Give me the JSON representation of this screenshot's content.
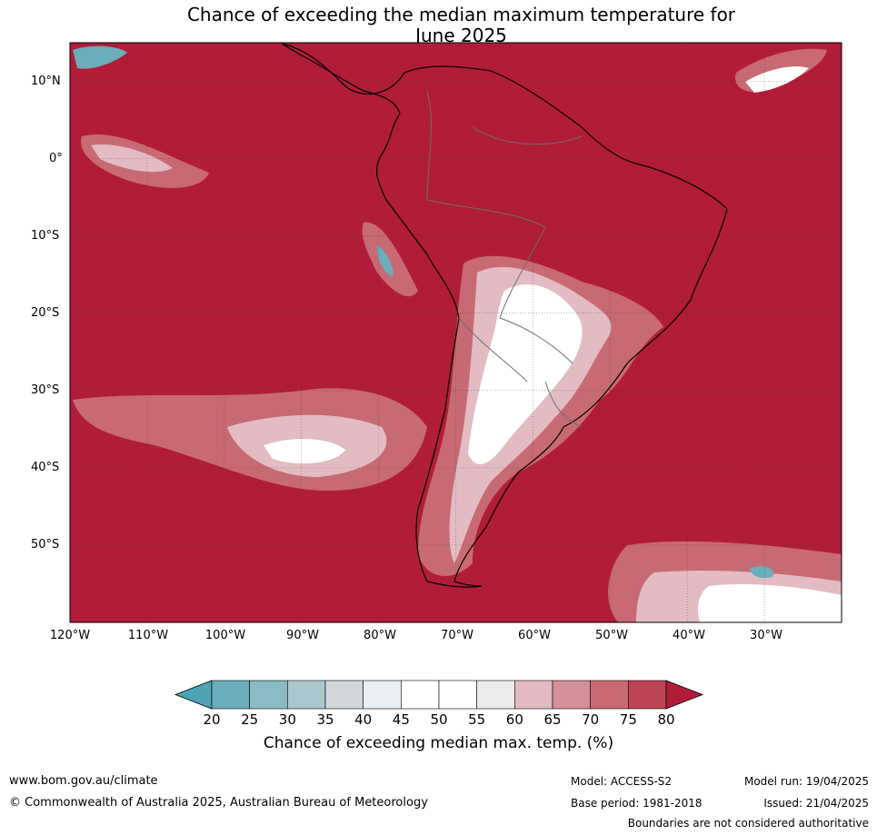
{
  "title_line1": "Chance of exceeding the median maximum temperature for",
  "title_line2": "June 2025",
  "lat_labels": [
    "10°N",
    "0°",
    "10°S",
    "20°S",
    "30°S",
    "40°S",
    "50°S"
  ],
  "lon_labels": [
    "120°W",
    "110°W",
    "100°W",
    "90°W",
    "80°W",
    "70°W",
    "60°W",
    "50°W",
    "40°W",
    "30°W"
  ],
  "map_extent": {
    "lon_min": -120,
    "lon_max": -20,
    "lat_min": -60,
    "lat_max": 15
  },
  "colorbar": {
    "label": "Chance of exceeding median max. temp. (%)",
    "ticks": [
      "20",
      "25",
      "30",
      "35",
      "40",
      "45",
      "50",
      "55",
      "60",
      "65",
      "70",
      "75",
      "80"
    ],
    "colors": [
      "#4ea4b4",
      "#6aadbb",
      "#8bbac5",
      "#abc8cf",
      "#d2d6d9",
      "#e8eef1",
      "#ffffff",
      "#ffffff",
      "#ecebec",
      "#e2bcc2",
      "#d58f98",
      "#c86a73",
      "#be4556",
      "#b11d38"
    ]
  },
  "footer": {
    "website": "www.bom.gov.au/climate",
    "copyright": "© Commonwealth of Australia 2025, Australian Bureau of Meteorology",
    "model": "Model: ACCESS-S2",
    "base_period": "Base period: 1981-2018",
    "model_run": "Model run: 19/04/2025",
    "issued": "Issued: 21/04/2025",
    "disclaimer": "Boundaries are not considered authoritative"
  }
}
